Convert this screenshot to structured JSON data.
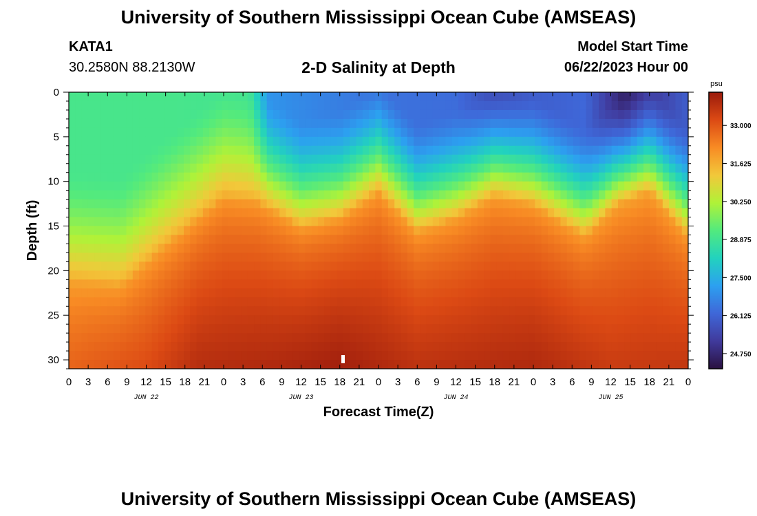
{
  "header": {
    "title": "University of Southern Mississippi Ocean Cube (AMSEAS)",
    "station": "KATA1",
    "coords": "30.2580N  88.2130W",
    "plot_title": "2-D Salinity at Depth",
    "model_start_label": "Model Start Time",
    "model_start_value": "06/22/2023 Hour 00"
  },
  "footer": {
    "title": "University of Southern Mississippi Ocean Cube (AMSEAS)"
  },
  "colors": {
    "colormap": [
      "#2a1140",
      "#403a9c",
      "#3f67d8",
      "#2ca0f0",
      "#22d2be",
      "#52ea7e",
      "#b0f238",
      "#f2c83a",
      "#f88b24",
      "#dc4a14",
      "#9a1a0c"
    ]
  },
  "chart_data": {
    "type": "heatmap",
    "title": "2-D Salinity at Depth",
    "xlabel": "Forecast Time(Z)",
    "ylabel": "Depth (ft)",
    "x_hours_range": [
      0,
      96
    ],
    "ylim": [
      0,
      31
    ],
    "x_ticks": [
      "0",
      "3",
      "6",
      "9",
      "12",
      "15",
      "18",
      "21",
      "0",
      "3",
      "6",
      "9",
      "12",
      "15",
      "18",
      "21",
      "0",
      "3",
      "6",
      "9",
      "12",
      "15",
      "18",
      "21",
      "0",
      "3",
      "6",
      "9",
      "12",
      "15",
      "18",
      "21",
      "0"
    ],
    "y_ticks": [
      "0",
      "5",
      "10",
      "15",
      "20",
      "25",
      "30"
    ],
    "day_labels": [
      "JUN 22",
      "JUN 23",
      "JUN 24",
      "JUN 25"
    ],
    "colorbar": {
      "unit": "psu",
      "range": [
        24.2,
        34.2
      ],
      "ticks": [
        "33.000",
        "31.625",
        "30.250",
        "28.875",
        "27.500",
        "26.125",
        "24.750"
      ]
    },
    "surface_salinity": [
      {
        "hour": 0,
        "value": 29.0
      },
      {
        "hour": 15,
        "value": 29.0
      },
      {
        "hour": 28,
        "value": 28.9
      },
      {
        "hour": 31,
        "value": 27.0
      },
      {
        "hour": 36,
        "value": 26.8
      },
      {
        "hour": 48,
        "value": 26.4
      },
      {
        "hour": 60,
        "value": 26.3
      },
      {
        "hour": 66,
        "value": 25.6
      },
      {
        "hour": 72,
        "value": 26.0
      },
      {
        "hour": 80,
        "value": 26.2
      },
      {
        "hour": 86,
        "value": 24.6
      },
      {
        "hour": 96,
        "value": 26.0
      }
    ],
    "halocline_depth_ft": [
      {
        "hour": 0,
        "value": 21.0
      },
      {
        "hour": 8,
        "value": 21.5
      },
      {
        "hour": 15,
        "value": 17.0
      },
      {
        "hour": 24,
        "value": 11.5
      },
      {
        "hour": 29,
        "value": 12.0
      },
      {
        "hour": 36,
        "value": 15.0
      },
      {
        "hour": 42,
        "value": 14.0
      },
      {
        "hour": 48,
        "value": 11.0
      },
      {
        "hour": 54,
        "value": 15.5
      },
      {
        "hour": 60,
        "value": 14.0
      },
      {
        "hour": 66,
        "value": 11.5
      },
      {
        "hour": 72,
        "value": 12.5
      },
      {
        "hour": 80,
        "value": 16.0
      },
      {
        "hour": 85,
        "value": 12.5
      },
      {
        "hour": 90,
        "value": 11.0
      },
      {
        "hour": 96,
        "value": 16.0
      }
    ],
    "bottom_salinity": [
      {
        "hour": 0,
        "value": 32.8
      },
      {
        "hour": 12,
        "value": 33.2
      },
      {
        "hour": 20,
        "value": 33.8
      },
      {
        "hour": 32,
        "value": 33.9
      },
      {
        "hour": 42,
        "value": 34.1
      },
      {
        "hour": 54,
        "value": 33.7
      },
      {
        "hour": 72,
        "value": 33.9
      },
      {
        "hour": 84,
        "value": 33.5
      },
      {
        "hour": 96,
        "value": 33.6
      }
    ]
  }
}
